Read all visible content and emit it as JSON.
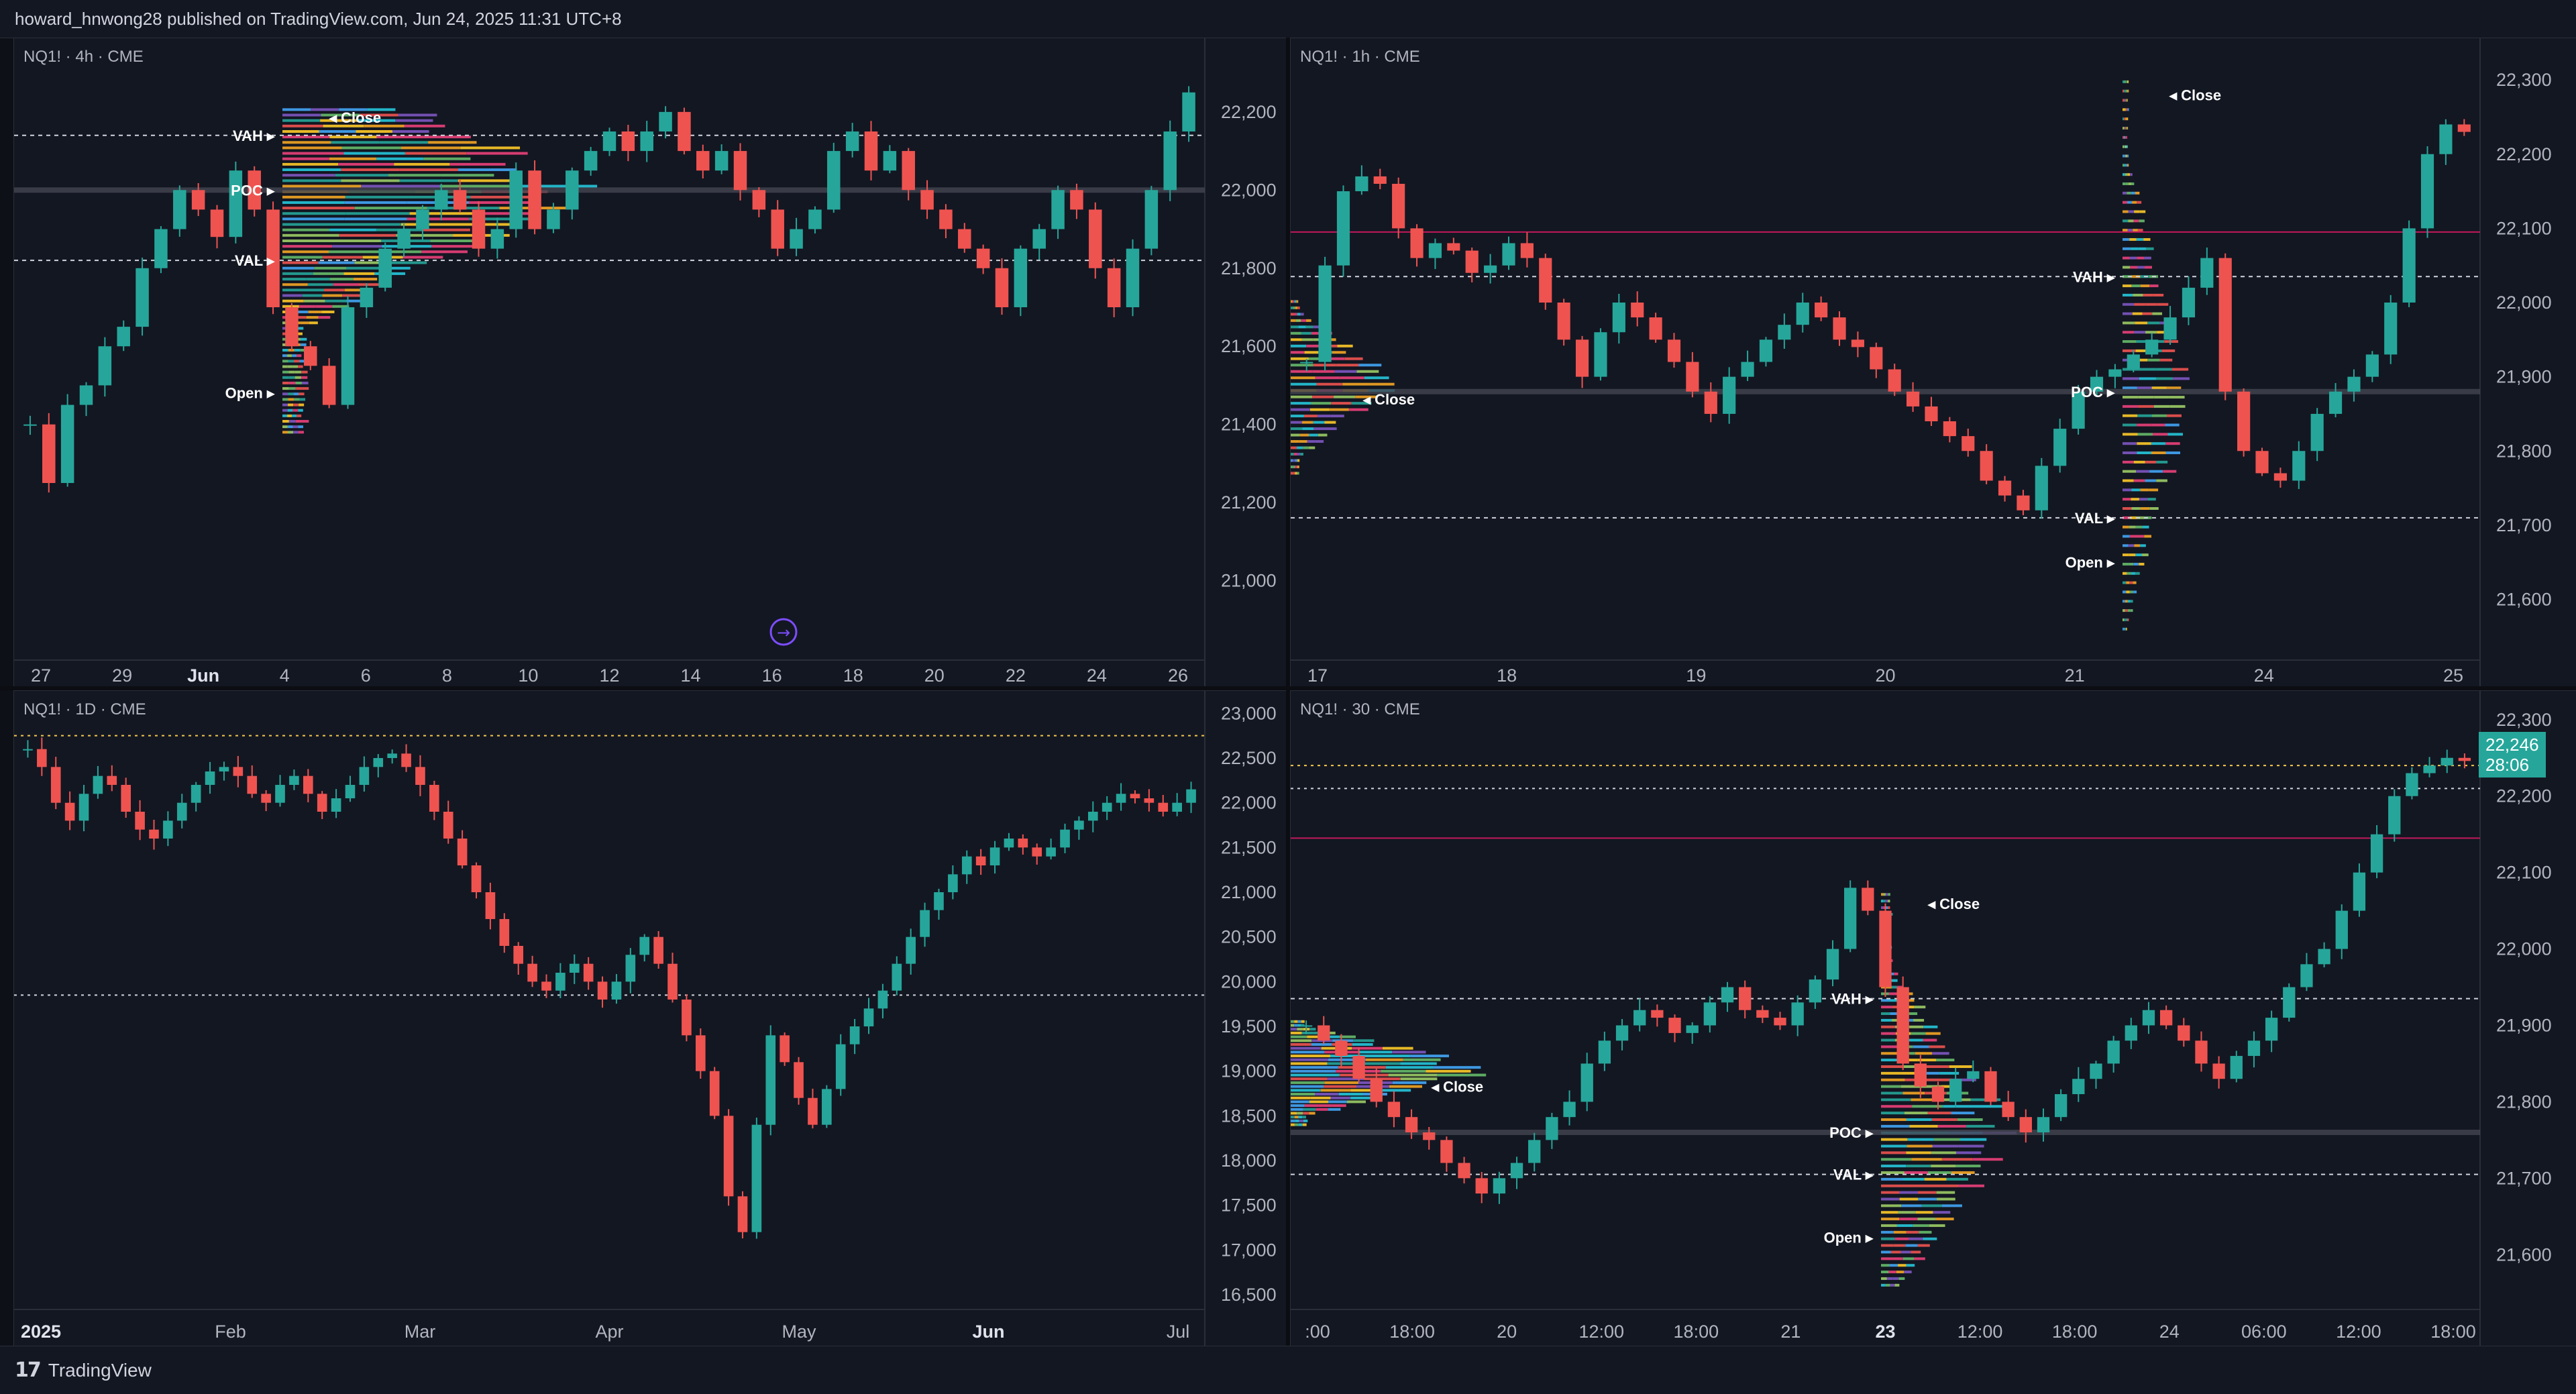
{
  "header": {
    "publisher_text": "howard_hnwong28 published on TradingView.com, Jun 24, 2025 11:31 UTC+8"
  },
  "footer": {
    "brand_mark": "17",
    "brand_name": "TradingView"
  },
  "colors": {
    "up": "#26a69a",
    "down": "#ef5350",
    "grid": "#1f2330",
    "axis_text": "#b2b5be"
  },
  "chart_data": [
    {
      "type": "candlestick",
      "panel_label": "NQ1! · 4h · CME",
      "ylim": [
        20800,
        22320
      ],
      "y_ticks": [
        "22,200",
        "22,000",
        "21,800",
        "21,600",
        "21,400",
        "21,200",
        "21,000"
      ],
      "y_tick_values": [
        22200,
        22000,
        21800,
        21600,
        21400,
        21200,
        21000
      ],
      "x_ticks": [
        "27",
        "29",
        "Jun",
        "4",
        "6",
        "8",
        "10",
        "12",
        "14",
        "16",
        "18",
        "20",
        "22",
        "24",
        "26"
      ],
      "profile_labels": [
        "Close",
        "VAH",
        "POC",
        "VAL",
        "Open"
      ],
      "levels": {
        "vah": 22140,
        "poc": 22000,
        "val": 21820
      },
      "closes": [
        21400,
        21250,
        21450,
        21500,
        21600,
        21650,
        21800,
        21900,
        22000,
        21950,
        21880,
        22050,
        21950,
        21700,
        21600,
        21550,
        21450,
        21700,
        21750,
        21850,
        21900,
        21950,
        22000,
        21950,
        21850,
        21900,
        22050,
        21900,
        21950,
        22050,
        22100,
        22150,
        22100,
        22150,
        22200,
        22100,
        22050,
        22100,
        22000,
        21950,
        21850,
        21900,
        21950,
        22100,
        22150,
        22050,
        22100,
        22000,
        21950,
        21900,
        21850,
        21800,
        21700,
        21850,
        21900,
        22000,
        21950,
        21800,
        21700,
        21850,
        22000,
        22150,
        22250
      ]
    },
    {
      "type": "candlestick",
      "panel_label": "NQ1! · 1h · CME",
      "ylim": [
        21520,
        22320
      ],
      "y_ticks": [
        "22,300",
        "22,200",
        "22,100",
        "22,000",
        "21,900",
        "21,800",
        "21,700",
        "21,600"
      ],
      "y_tick_values": [
        22300,
        22200,
        22100,
        22000,
        21900,
        21800,
        21700,
        21600
      ],
      "x_ticks": [
        "17",
        "18",
        "19",
        "20",
        "21",
        "24",
        "25"
      ],
      "profile_labels": [
        "Close",
        "Close",
        "VAH",
        "POC",
        "VAL",
        "Open"
      ],
      "levels": {
        "vah": 22035,
        "poc": 21880,
        "val": 21710,
        "line_red": 22095
      },
      "closes": [
        21920,
        22050,
        22150,
        22170,
        22160,
        22100,
        22060,
        22080,
        22070,
        22040,
        22050,
        22080,
        22060,
        22000,
        21950,
        21900,
        21960,
        22000,
        21980,
        21950,
        21920,
        21880,
        21850,
        21900,
        21920,
        21950,
        21970,
        22000,
        21980,
        21950,
        21940,
        21910,
        21880,
        21860,
        21840,
        21820,
        21800,
        21760,
        21740,
        21720,
        21780,
        21830,
        21880,
        21900,
        21910,
        21930,
        21950,
        21980,
        22020,
        22060,
        21880,
        21800,
        21770,
        21760,
        21800,
        21850,
        21880,
        21900,
        21930,
        22000,
        22100,
        22200,
        22240,
        22230
      ]
    },
    {
      "type": "candlestick",
      "panel_label": "NQ1! · 1D · CME",
      "ylim": [
        16350,
        23100
      ],
      "y_ticks": [
        "23,000",
        "22,500",
        "22,000",
        "21,500",
        "21,000",
        "20,500",
        "20,000",
        "19,500",
        "19,000",
        "18,500",
        "18,000",
        "17,500",
        "17,000",
        "16,500"
      ],
      "y_tick_values": [
        23000,
        22500,
        22000,
        21500,
        21000,
        20500,
        20000,
        19500,
        19000,
        18500,
        18000,
        17500,
        17000,
        16500
      ],
      "x_ticks": [
        "2025",
        "Feb",
        "Mar",
        "Apr",
        "May",
        "Jun",
        "Jul"
      ],
      "levels": {
        "upper": 22750,
        "lower": 19850
      },
      "closes": [
        22600,
        22400,
        22000,
        21800,
        22100,
        22300,
        22200,
        21900,
        21700,
        21600,
        21800,
        22000,
        22200,
        22350,
        22400,
        22300,
        22100,
        22000,
        22200,
        22300,
        22100,
        21900,
        22050,
        22200,
        22400,
        22500,
        22550,
        22400,
        22200,
        21900,
        21600,
        21300,
        21000,
        20700,
        20400,
        20200,
        20000,
        19900,
        20100,
        20200,
        20000,
        19800,
        20000,
        20300,
        20500,
        20200,
        19800,
        19400,
        19000,
        18500,
        17600,
        17200,
        18400,
        19400,
        19100,
        18700,
        18400,
        18800,
        19300,
        19500,
        19700,
        19900,
        20200,
        20500,
        20800,
        21000,
        21200,
        21400,
        21300,
        21500,
        21600,
        21500,
        21400,
        21500,
        21700,
        21800,
        21900,
        22000,
        22100,
        22050,
        22000,
        21900,
        22000,
        22150
      ]
    },
    {
      "type": "candlestick",
      "panel_label": "NQ1! · 30 · CME",
      "ylim": [
        21530,
        22320
      ],
      "y_ticks": [
        "22,300",
        "22,200",
        "22,100",
        "22,000",
        "21,900",
        "21,800",
        "21,700",
        "21,600"
      ],
      "y_tick_values": [
        22300,
        22200,
        22100,
        22000,
        21900,
        21800,
        21700,
        21600
      ],
      "x_ticks": [
        ":00",
        "18:00",
        "20",
        "12:00",
        "18:00",
        "21",
        "23",
        "12:00",
        "18:00",
        "24",
        "06:00",
        "12:00",
        "18:00"
      ],
      "profile_labels": [
        "Close",
        "Close",
        "VAH",
        "POC",
        "VAL",
        "Open"
      ],
      "levels": {
        "vah": 21935,
        "poc": 21760,
        "val": 21705,
        "line_red": 22145,
        "upper": 22240,
        "upper2": 22210
      },
      "last_price": "22,246",
      "countdown": "28:06",
      "closes": [
        21900,
        21880,
        21860,
        21830,
        21800,
        21780,
        21760,
        21750,
        21720,
        21700,
        21680,
        21700,
        21720,
        21750,
        21780,
        21800,
        21850,
        21880,
        21900,
        21920,
        21910,
        21890,
        21900,
        21930,
        21950,
        21920,
        21910,
        21900,
        21930,
        21960,
        22000,
        22080,
        22050,
        21950,
        21850,
        21820,
        21800,
        21830,
        21840,
        21800,
        21780,
        21760,
        21780,
        21810,
        21830,
        21850,
        21880,
        21900,
        21920,
        21900,
        21880,
        21850,
        21830,
        21860,
        21880,
        21910,
        21950,
        21980,
        22000,
        22050,
        22100,
        22150,
        22200,
        22230,
        22240,
        22250,
        22246
      ]
    }
  ]
}
